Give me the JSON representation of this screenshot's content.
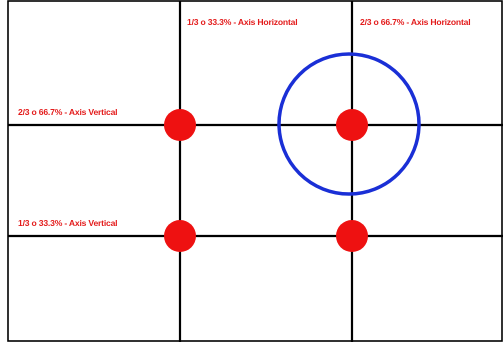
{
  "labels": {
    "h_third": "1/3 o 33.3% - Axis Horizontal",
    "h_two_thirds": "2/3 o 66.7% - Axis Horizontal",
    "v_two_thirds": "2/3 o 66.7% - Axis Vertical",
    "v_third": "1/3 o 33.3% - Axis Vertical"
  },
  "colors": {
    "grid": "#000000",
    "dots": "#ee1111",
    "circle": "#1a2fd6",
    "label_text": "#e31b1b",
    "background": "#ffffff"
  }
}
